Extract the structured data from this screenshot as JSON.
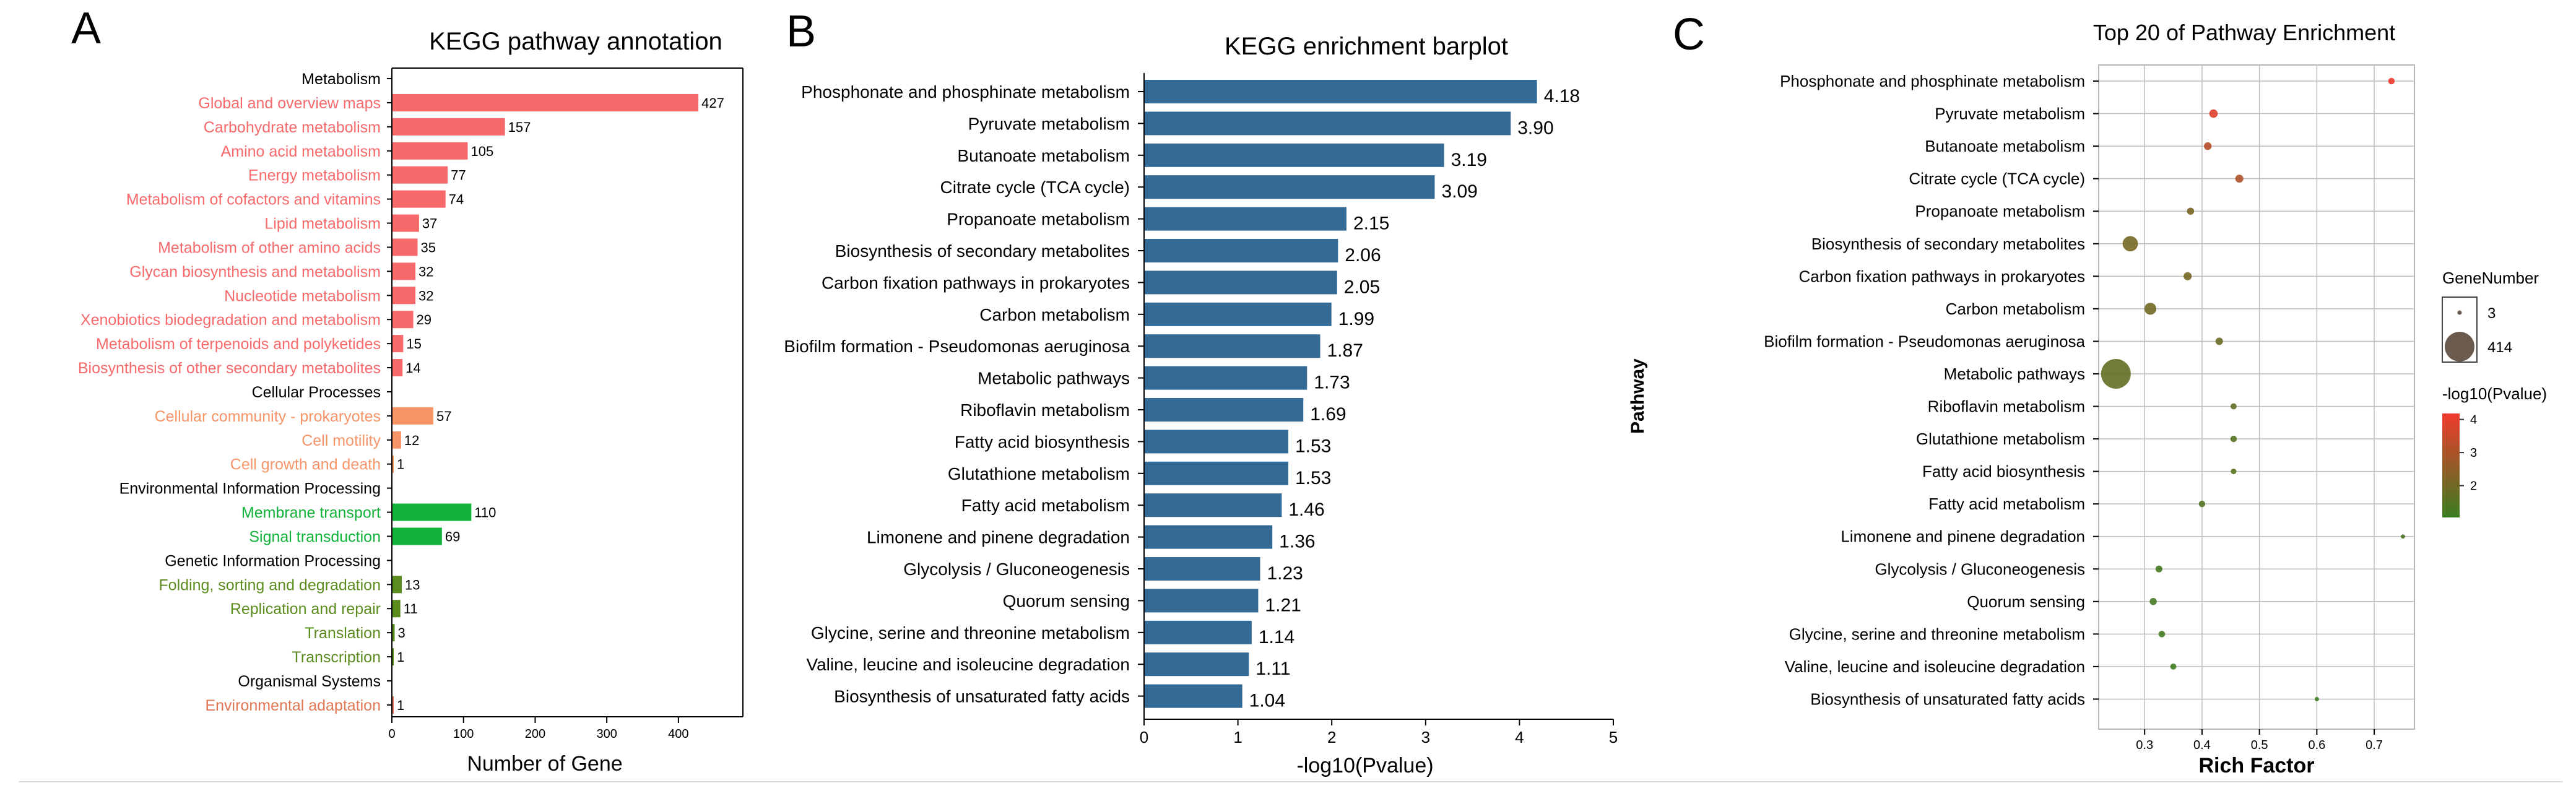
{
  "chart_data": [
    {
      "panel_letter": "A",
      "type": "bar",
      "orientation": "horizontal",
      "title": "KEGG pathway annotation",
      "xlabel": "Number of Gene",
      "ylabel": "",
      "xlim": [
        0,
        490
      ],
      "xticks": [
        0,
        100,
        200,
        300,
        400
      ],
      "categories": [
        {
          "label": "Metabolism",
          "value": null,
          "group": "Metabolism",
          "is_header": true
        },
        {
          "label": "Global and overview maps",
          "value": 427,
          "group": "Metabolism"
        },
        {
          "label": "Carbohydrate metabolism",
          "value": 157,
          "group": "Metabolism"
        },
        {
          "label": "Amino acid metabolism",
          "value": 105,
          "group": "Metabolism"
        },
        {
          "label": "Energy metabolism",
          "value": 77,
          "group": "Metabolism"
        },
        {
          "label": "Metabolism of cofactors and vitamins",
          "value": 74,
          "group": "Metabolism"
        },
        {
          "label": "Lipid metabolism",
          "value": 37,
          "group": "Metabolism"
        },
        {
          "label": "Metabolism of other amino acids",
          "value": 35,
          "group": "Metabolism"
        },
        {
          "label": "Glycan biosynthesis and metabolism",
          "value": 32,
          "group": "Metabolism"
        },
        {
          "label": "Nucleotide metabolism",
          "value": 32,
          "group": "Metabolism"
        },
        {
          "label": "Xenobiotics biodegradation and metabolism",
          "value": 29,
          "group": "Metabolism"
        },
        {
          "label": "Metabolism of terpenoids and polyketides",
          "value": 15,
          "group": "Metabolism"
        },
        {
          "label": "Biosynthesis of other secondary metabolites",
          "value": 14,
          "group": "Metabolism"
        },
        {
          "label": "Cellular Processes",
          "value": null,
          "group": "Cellular Processes",
          "is_header": true
        },
        {
          "label": "Cellular community - prokaryotes",
          "value": 57,
          "group": "Cellular Processes"
        },
        {
          "label": "Cell motility",
          "value": 12,
          "group": "Cellular Processes"
        },
        {
          "label": "Cell growth and death",
          "value": 1,
          "group": "Cellular Processes"
        },
        {
          "label": "Environmental Information Processing",
          "value": null,
          "group": "Environmental Information Processing",
          "is_header": true
        },
        {
          "label": "Membrane transport",
          "value": 110,
          "group": "Environmental Information Processing"
        },
        {
          "label": "Signal transduction",
          "value": 69,
          "group": "Environmental Information Processing"
        },
        {
          "label": "Genetic Information Processing",
          "value": null,
          "group": "Genetic Information Processing",
          "is_header": true
        },
        {
          "label": "Folding, sorting and degradation",
          "value": 13,
          "group": "Genetic Information Processing"
        },
        {
          "label": "Replication and repair",
          "value": 11,
          "group": "Genetic Information Processing"
        },
        {
          "label": "Translation",
          "value": 3,
          "group": "Genetic Information Processing"
        },
        {
          "label": "Transcription",
          "value": 1,
          "group": "Genetic Information Processing"
        },
        {
          "label": "Organismal Systems",
          "value": null,
          "group": "Organismal Systems",
          "is_header": true
        },
        {
          "label": "Environmental adaptation",
          "value": 1,
          "group": "Organismal Systems"
        }
      ],
      "group_colors": {
        "Metabolism": "#f8696b",
        "Cellular Processes": "#f79569",
        "Environmental Information Processing": "#11b33a",
        "Genetic Information Processing": "#5c8c1f",
        "Organismal Systems": "#e07856",
        "header": "#000000"
      }
    },
    {
      "panel_letter": "B",
      "type": "bar",
      "orientation": "horizontal",
      "title": "KEGG enrichment barplot",
      "xlabel": "-log10(Pvalue)",
      "ylabel": "",
      "xlim": [
        0,
        5
      ],
      "xticks": [
        0,
        1,
        2,
        3,
        4,
        5
      ],
      "bar_color": "#336a96",
      "categories": [
        "Phosphonate and phosphinate metabolism",
        "Pyruvate metabolism",
        "Butanoate metabolism",
        "Citrate cycle (TCA cycle)",
        "Propanoate metabolism",
        "Biosynthesis of secondary metabolites",
        "Carbon fixation pathways in prokaryotes",
        "Carbon metabolism",
        "Biofilm formation - Pseudomonas aeruginosa",
        "Metabolic pathways",
        "Riboflavin metabolism",
        "Fatty acid biosynthesis",
        "Glutathione metabolism",
        "Fatty acid metabolism",
        "Limonene and pinene degradation",
        "Glycolysis / Gluconeogenesis",
        "Quorum sensing",
        "Glycine, serine and threonine metabolism",
        "Valine, leucine and isoleucine degradation",
        "Biosynthesis of unsaturated fatty acids"
      ],
      "values": [
        4.18,
        3.9,
        3.19,
        3.09,
        2.15,
        2.06,
        2.05,
        1.99,
        1.87,
        1.73,
        1.69,
        1.53,
        1.53,
        1.46,
        1.36,
        1.23,
        1.21,
        1.14,
        1.11,
        1.04
      ],
      "value_labels": [
        "4.18",
        "3.90",
        "3.19",
        "3.09",
        "2.15",
        "2.06",
        "2.05",
        "1.99",
        "1.87",
        "1.73",
        "1.69",
        "1.53",
        "1.53",
        "1.46",
        "1.36",
        "1.23",
        "1.21",
        "1.14",
        "1.11",
        "1.04"
      ]
    },
    {
      "panel_letter": "C",
      "type": "scatter",
      "title": "Top 20 of Pathway Enrichment",
      "xlabel": "Rich Factor",
      "ylabel": "Pathway",
      "xlim": [
        0.22,
        0.77
      ],
      "xticks": [
        0.3,
        0.4,
        0.5,
        0.6,
        0.7
      ],
      "xtick_labels": [
        "0.3",
        "0.4",
        "0.5",
        "0.6",
        "0.7"
      ],
      "grid": true,
      "categories": [
        "Phosphonate and phosphinate metabolism",
        "Pyruvate metabolism",
        "Butanoate metabolism",
        "Citrate cycle (TCA cycle)",
        "Propanoate metabolism",
        "Biosynthesis of secondary metabolites",
        "Carbon fixation pathways in prokaryotes",
        "Carbon metabolism",
        "Biofilm formation - Pseudomonas aeruginosa",
        "Metabolic pathways",
        "Riboflavin metabolism",
        "Glutathione metabolism",
        "Fatty acid biosynthesis",
        "Fatty acid metabolism",
        "Limonene and pinene degradation",
        "Glycolysis / Gluconeogenesis",
        "Quorum sensing",
        "Glycine, serine and threonine metabolism",
        "Valine, leucine and isoleucine degradation",
        "Biosynthesis of unsaturated fatty acids"
      ],
      "rich_factor": [
        0.73,
        0.42,
        0.41,
        0.465,
        0.38,
        0.275,
        0.375,
        0.31,
        0.43,
        0.25,
        0.455,
        0.455,
        0.455,
        0.4,
        0.75,
        0.325,
        0.315,
        0.33,
        0.35,
        0.6
      ],
      "neg_log10_pvalue": [
        4.18,
        3.9,
        3.19,
        3.09,
        2.15,
        2.06,
        2.05,
        1.99,
        1.87,
        1.73,
        1.69,
        1.53,
        1.53,
        1.46,
        1.36,
        1.23,
        1.21,
        1.14,
        1.11,
        1.04
      ],
      "gene_number": [
        6,
        14,
        10,
        12,
        8,
        80,
        12,
        40,
        9,
        414,
        5,
        6,
        4,
        6,
        3,
        7,
        8,
        6,
        5,
        3
      ],
      "size_legend": {
        "title": "GeneNumber",
        "entries": [
          {
            "label": "3",
            "value": 3
          },
          {
            "label": "414",
            "value": 414
          }
        ]
      },
      "color_legend": {
        "title": "-log10(Pvalue)",
        "range": [
          1.04,
          4.18
        ],
        "ticks": [
          2,
          3,
          4
        ],
        "tick_labels": [
          "2",
          "3",
          "4"
        ],
        "low_color": "#3a7d1f",
        "high_color": "#f03a2e"
      }
    }
  ]
}
